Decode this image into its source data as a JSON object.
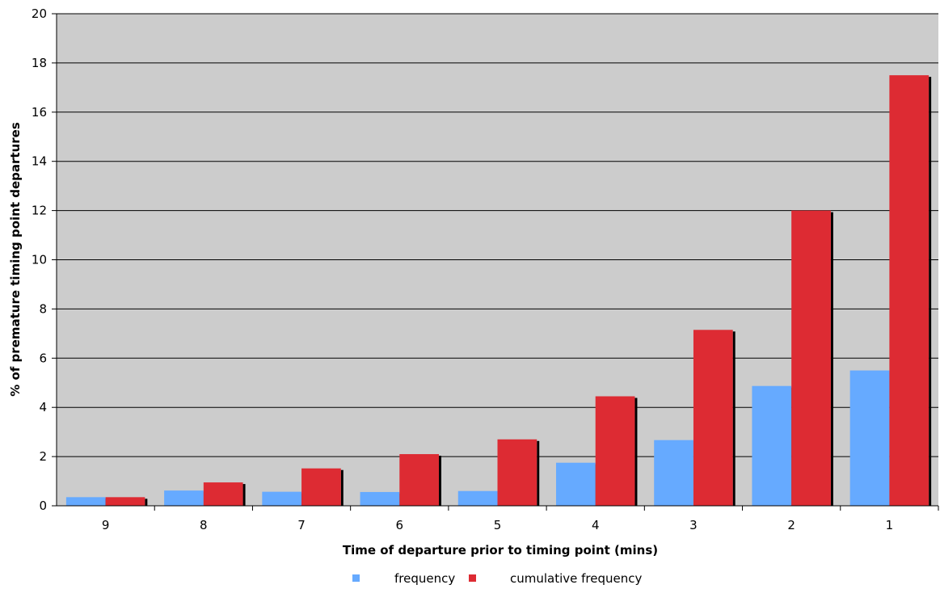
{
  "chart_data": {
    "type": "bar",
    "categories": [
      "9",
      "8",
      "7",
      "6",
      "5",
      "4",
      "3",
      "2",
      "1"
    ],
    "series": [
      {
        "name": "frequency",
        "values": [
          0.35,
          0.62,
          0.57,
          0.56,
          0.6,
          1.75,
          2.67,
          4.87,
          5.5
        ],
        "color": "#66aaff"
      },
      {
        "name": "cumulative frequency",
        "values": [
          0.35,
          0.95,
          1.52,
          2.1,
          2.7,
          4.45,
          7.15,
          12.0,
          17.5
        ],
        "color": "#dd2b33"
      }
    ],
    "title": "",
    "xlabel": "Time of departure prior to timing point (mins)",
    "ylabel": "% of premature timing point departures",
    "ylim": [
      0,
      20
    ],
    "yticks": [
      "0",
      "2",
      "4",
      "6",
      "8",
      "10",
      "12",
      "14",
      "16",
      "18",
      "20"
    ],
    "grid": true,
    "plot_background": "#cccccc",
    "legend_position": "bottom-center"
  }
}
